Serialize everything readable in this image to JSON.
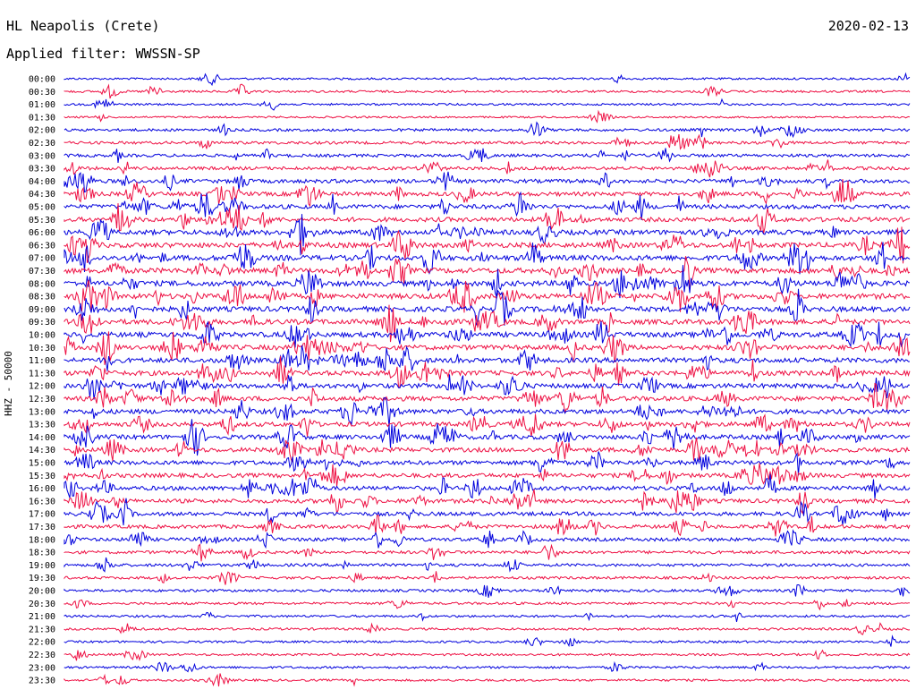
{
  "header": {
    "station": "HL Neapolis (Crete)",
    "date": "2020-02-13",
    "filter": "Applied filter: WWSSN-SP"
  },
  "chart_data": {
    "type": "line",
    "title": "HL Neapolis (Crete)",
    "ylabel": "HHZ - 50000",
    "colors": [
      "#0000dd",
      "#ee1144"
    ],
    "rows": [
      "00:00",
      "00:30",
      "01:00",
      "01:30",
      "02:00",
      "02:30",
      "03:00",
      "03:30",
      "04:00",
      "04:30",
      "05:00",
      "05:30",
      "06:00",
      "06:30",
      "07:00",
      "07:30",
      "08:00",
      "08:30",
      "09:00",
      "09:30",
      "10:00",
      "10:30",
      "11:00",
      "11:30",
      "12:00",
      "12:30",
      "13:00",
      "13:30",
      "14:00",
      "14:30",
      "15:00",
      "15:30",
      "16:00",
      "16:30",
      "17:00",
      "17:30",
      "18:00",
      "18:30",
      "19:00",
      "19:30",
      "20:00",
      "20:30",
      "21:00",
      "21:30",
      "22:00",
      "22:30",
      "23:00",
      "23:30"
    ],
    "activity": [
      0.15,
      0.2,
      0.15,
      0.1,
      0.3,
      0.35,
      0.4,
      0.45,
      0.6,
      0.65,
      0.7,
      0.75,
      0.85,
      0.9,
      0.95,
      0.95,
      0.95,
      0.95,
      0.9,
      0.9,
      0.9,
      0.85,
      0.85,
      0.85,
      0.8,
      0.8,
      0.8,
      0.75,
      0.75,
      0.75,
      0.7,
      0.7,
      0.7,
      0.65,
      0.6,
      0.55,
      0.5,
      0.4,
      0.35,
      0.3,
      0.28,
      0.25,
      0.2,
      0.22,
      0.18,
      0.18,
      0.2,
      0.2
    ]
  }
}
